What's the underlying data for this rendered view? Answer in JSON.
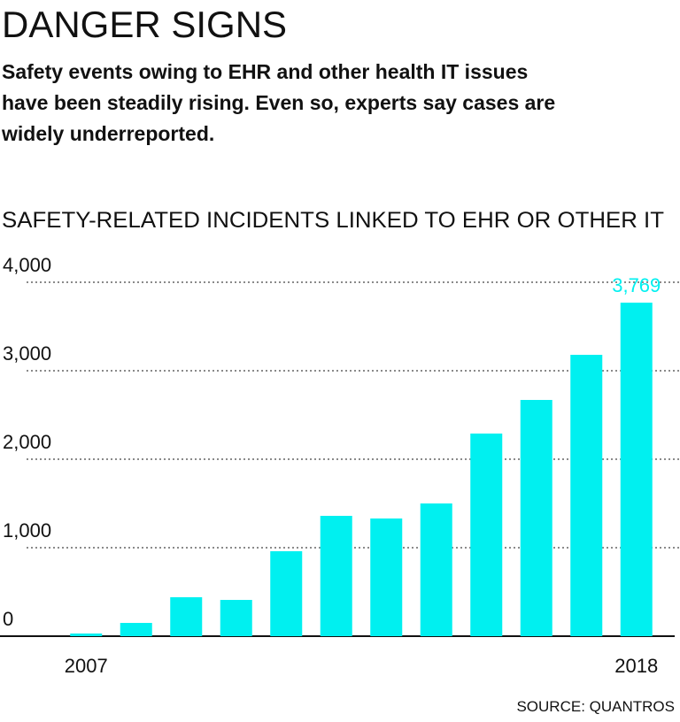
{
  "chart_data": {
    "type": "bar",
    "title": "DANGER SIGNS",
    "subtitle": [
      "Safety events owing to EHR and other health IT issues",
      "have been steadily rising. Even so, experts say cases are",
      "widely underreported."
    ],
    "chart_title": "SAFETY-RELATED INCIDENTS LINKED TO EHR OR OTHER IT",
    "source": "SOURCE: QUANTROS",
    "categories": [
      "2007",
      null,
      null,
      null,
      null,
      null,
      null,
      null,
      null,
      null,
      null,
      "2018"
    ],
    "values": [
      30,
      150,
      440,
      410,
      960,
      1360,
      1330,
      1500,
      2290,
      2670,
      3180,
      3769
    ],
    "value_labels": [
      null,
      null,
      null,
      null,
      null,
      null,
      null,
      null,
      null,
      null,
      null,
      "3,769"
    ],
    "color": "#00f0f0",
    "ylim": [
      0,
      4000
    ],
    "yticks": [
      {
        "value": 0,
        "label": "0"
      },
      {
        "value": 1000,
        "label": "1,000"
      },
      {
        "value": 2000,
        "label": "2,000"
      },
      {
        "value": 3000,
        "label": "3,000"
      },
      {
        "value": 4000,
        "label": "4,000"
      }
    ],
    "grid": true
  }
}
